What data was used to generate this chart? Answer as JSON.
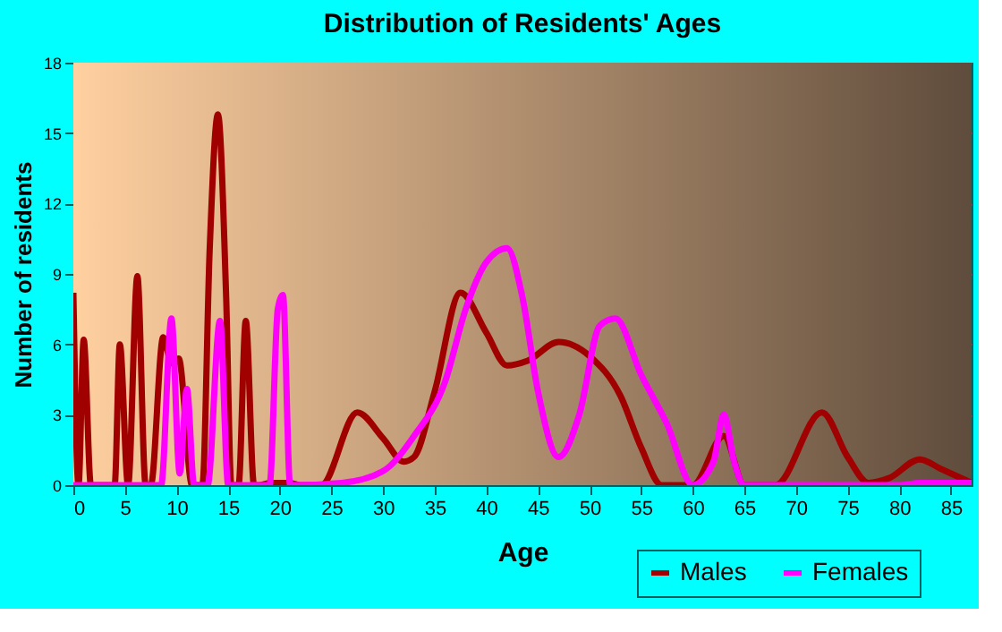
{
  "chart_data": {
    "type": "line",
    "title": "Distribution of Residents' Ages",
    "xlabel": "Age",
    "ylabel": "Number of residents",
    "xlim": [
      0,
      87
    ],
    "xticks": [
      0,
      5,
      10,
      15,
      20,
      25,
      30,
      35,
      40,
      45,
      50,
      55,
      60,
      65,
      70,
      75,
      80,
      85
    ],
    "ylim": [
      0,
      18
    ],
    "yticks": [
      0,
      3,
      6,
      9,
      12,
      15,
      18
    ],
    "grid": true,
    "legend": "bottom right",
    "series": [
      {
        "name": "Males",
        "color": "#a00000",
        "x": [
          0,
          0.5,
          1,
          1.7,
          2,
          4,
          4.5,
          5.3,
          6.2,
          7,
          7.5,
          8.7,
          9.5,
          10.2,
          11.5,
          12.5,
          13.2,
          14,
          14.8,
          15.3,
          16,
          16.7,
          17.5,
          18,
          19,
          21,
          22,
          24,
          27.5,
          30,
          32,
          33,
          35,
          37.5,
          40,
          42,
          44,
          47,
          50,
          53,
          55,
          57,
          60,
          63,
          65,
          68,
          72.5,
          75,
          77,
          79,
          82,
          84,
          87
        ],
        "values": [
          8.2,
          0,
          6.2,
          0,
          0,
          0,
          6,
          0,
          8.9,
          0,
          0,
          6.3,
          5.2,
          5.4,
          0,
          0,
          10,
          15.8,
          8,
          0,
          0,
          7,
          0,
          0,
          0.1,
          0.1,
          0,
          0,
          3.1,
          2,
          1,
          1.2,
          4,
          8.2,
          6.5,
          5.1,
          5.3,
          6.1,
          5.5,
          3.8,
          1.6,
          0,
          0,
          2.1,
          0,
          0,
          3.1,
          1.2,
          0.1,
          0.3,
          1.1,
          0.7,
          0.1
        ]
      },
      {
        "name": "Females",
        "color": "#ff00ff",
        "x": [
          0,
          8.5,
          9.5,
          10.3,
          11,
          11.7,
          13,
          14.2,
          15,
          19,
          19.8,
          20.3,
          21,
          26,
          30,
          33,
          36,
          38,
          40,
          42,
          43.5,
          45,
          47,
          49,
          51,
          52.5,
          55,
          57.5,
          60,
          62,
          63,
          64,
          65,
          80,
          82,
          87
        ],
        "values": [
          0,
          0,
          7.1,
          0.5,
          4.1,
          0,
          0,
          7,
          0,
          0,
          7.5,
          8.1,
          0,
          0.1,
          0.6,
          2.1,
          4.4,
          7.5,
          9.5,
          10.1,
          8,
          4,
          1.2,
          3,
          6.8,
          7.1,
          4.7,
          2.6,
          0,
          1,
          3,
          1,
          0,
          0,
          0.1,
          0.1
        ]
      }
    ]
  }
}
